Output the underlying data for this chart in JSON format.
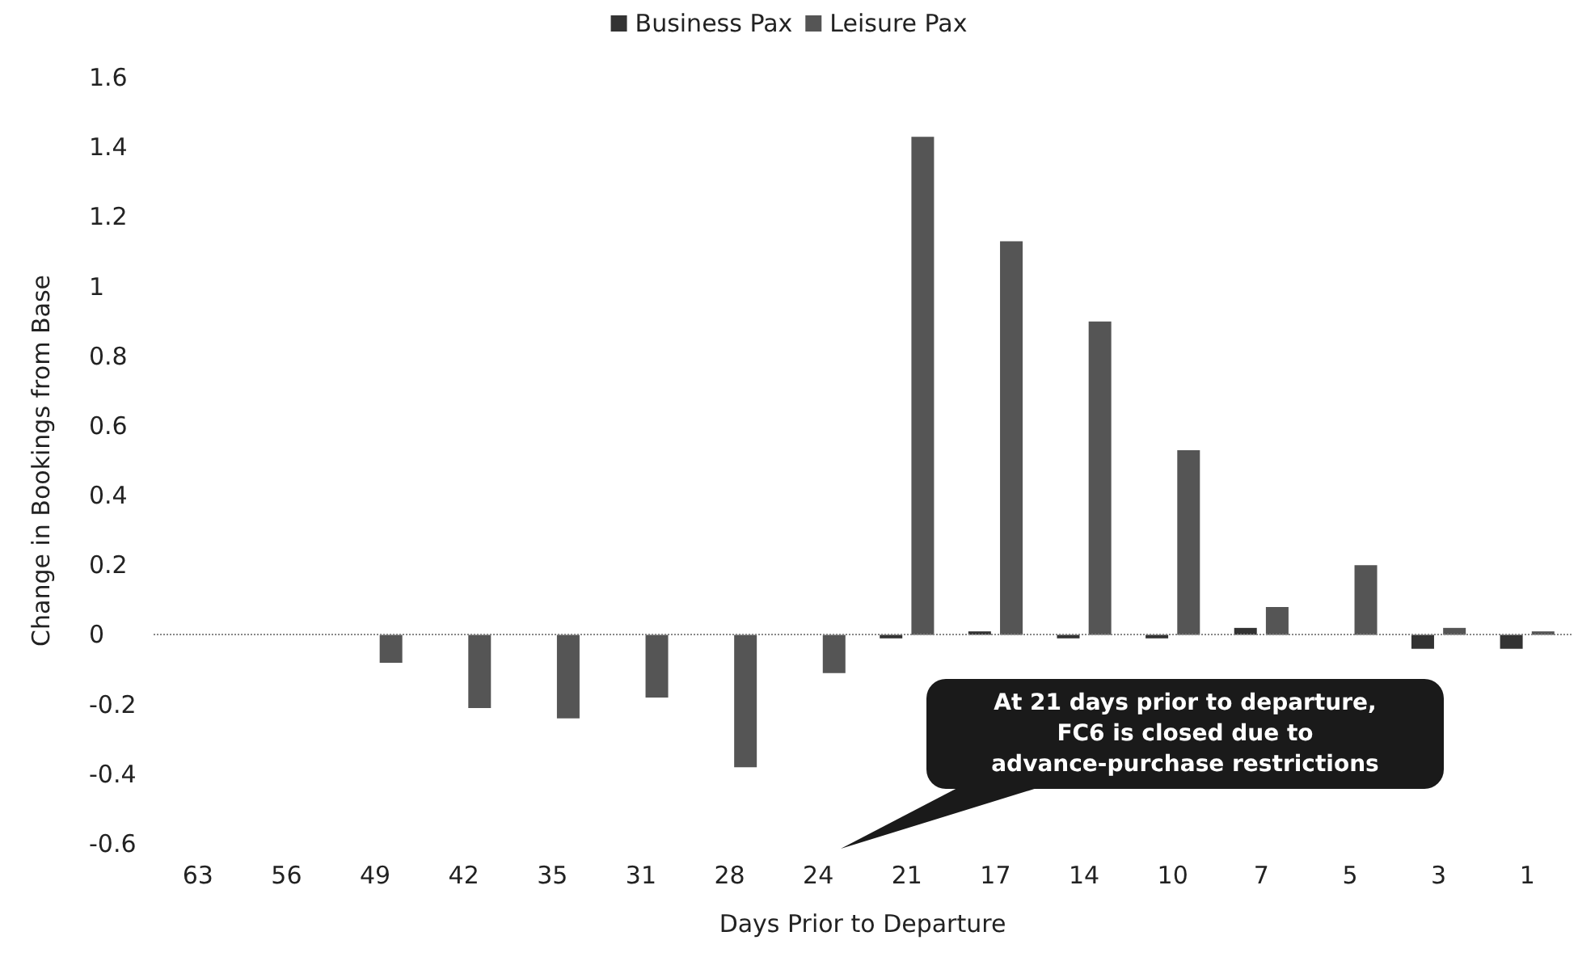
{
  "chart_data": {
    "type": "bar",
    "xlabel": "Days Prior to Departure",
    "ylabel": "Change in Bookings from Base",
    "categories": [
      "63",
      "56",
      "49",
      "42",
      "35",
      "31",
      "28",
      "24",
      "21",
      "17",
      "14",
      "10",
      "7",
      "5",
      "3",
      "1"
    ],
    "series": [
      {
        "name": "Business Pax",
        "color": "#333333",
        "values": [
          null,
          null,
          null,
          null,
          null,
          null,
          null,
          null,
          -0.01,
          0.01,
          -0.01,
          -0.01,
          0.02,
          null,
          -0.04,
          -0.04
        ]
      },
      {
        "name": "Leisure Pax",
        "color": "#555555",
        "values": [
          null,
          null,
          -0.08,
          -0.21,
          -0.24,
          -0.18,
          -0.38,
          -0.11,
          1.43,
          1.13,
          0.9,
          0.53,
          0.08,
          0.2,
          0.02,
          0.01
        ]
      }
    ],
    "ylim": [
      -0.6,
      1.6
    ],
    "yticks": [
      -0.6,
      -0.4,
      -0.2,
      0,
      0.2,
      0.4,
      0.6,
      0.8,
      1,
      1.2,
      1.4,
      1.6
    ],
    "ref_lines": [
      {
        "axis": "y",
        "value": 0,
        "line_style": "dotted",
        "color": "#888888"
      }
    ],
    "annotations": [
      "At 21 days prior to departure,\nFC6 is closed due to\nadvance-purchase restrictions"
    ],
    "grid": false,
    "legend": "top"
  }
}
